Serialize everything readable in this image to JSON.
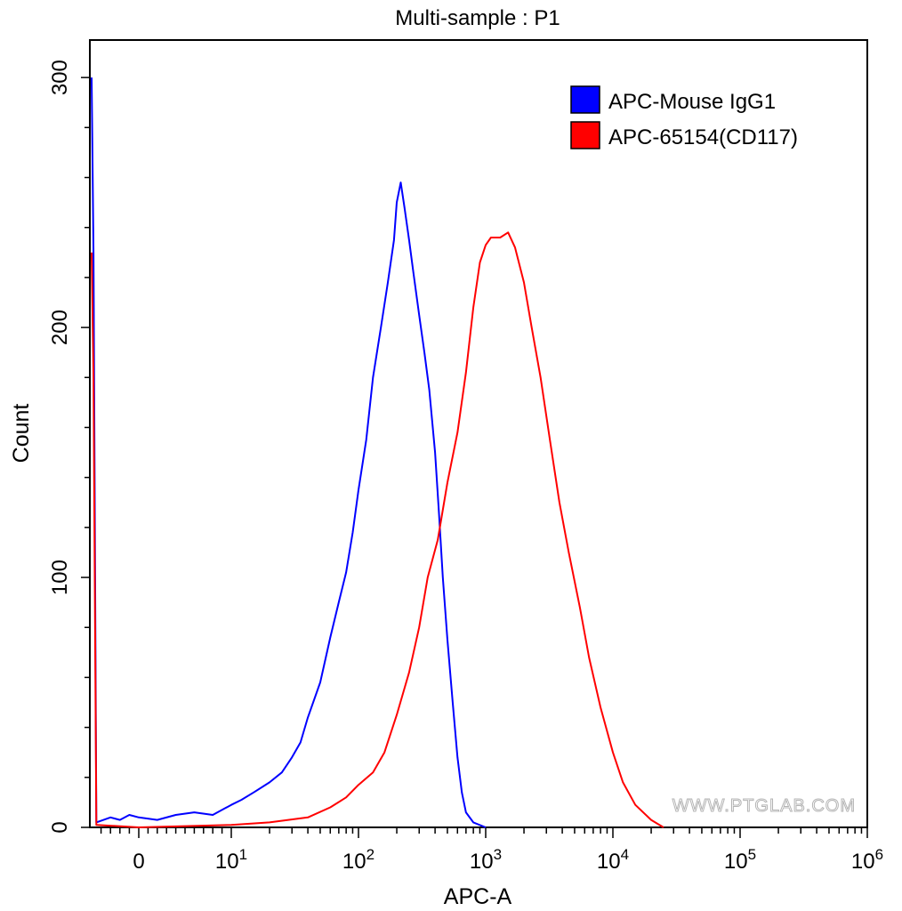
{
  "chart_data": {
    "type": "histogram",
    "title": "Multi-sample : P1",
    "xlabel": "APC-A",
    "ylabel": "Count",
    "x_scale": "biexponential",
    "xlim": [
      -5,
      1000000
    ],
    "ylim": [
      0,
      315
    ],
    "y_ticks": [
      0,
      100,
      200,
      300
    ],
    "y_tick_labels": [
      "0",
      "100",
      "200",
      "300"
    ],
    "x_tick_labels": [
      {
        "value": 0,
        "base": "0",
        "exp": ""
      },
      {
        "value": 10,
        "base": "10",
        "exp": "1"
      },
      {
        "value": 100,
        "base": "10",
        "exp": "2"
      },
      {
        "value": 1000,
        "base": "10",
        "exp": "3"
      },
      {
        "value": 10000,
        "base": "10",
        "exp": "4"
      },
      {
        "value": 100000,
        "base": "10",
        "exp": "5"
      },
      {
        "value": 1000000,
        "base": "10",
        "exp": "6"
      }
    ],
    "legend_position": "top-right",
    "watermark": "WWW.PTGLAB.COM",
    "series": [
      {
        "name": "APC-Mouse IgG1",
        "color": "#0000ff",
        "points": [
          [
            -5,
            300
          ],
          [
            -4.8,
            230
          ],
          [
            -4.5,
            2
          ],
          [
            -3,
            4
          ],
          [
            -2,
            3
          ],
          [
            -1,
            5
          ],
          [
            0,
            4
          ],
          [
            2,
            3
          ],
          [
            4,
            5
          ],
          [
            6,
            6
          ],
          [
            8,
            5
          ],
          [
            10,
            9
          ],
          [
            12,
            11
          ],
          [
            15,
            14
          ],
          [
            20,
            18
          ],
          [
            25,
            22
          ],
          [
            30,
            28
          ],
          [
            35,
            34
          ],
          [
            40,
            44
          ],
          [
            50,
            58
          ],
          [
            60,
            76
          ],
          [
            70,
            90
          ],
          [
            80,
            102
          ],
          [
            90,
            118
          ],
          [
            100,
            135
          ],
          [
            115,
            155
          ],
          [
            130,
            180
          ],
          [
            150,
            200
          ],
          [
            170,
            218
          ],
          [
            190,
            235
          ],
          [
            200,
            250
          ],
          [
            215,
            258
          ],
          [
            230,
            248
          ],
          [
            250,
            235
          ],
          [
            270,
            222
          ],
          [
            300,
            205
          ],
          [
            330,
            190
          ],
          [
            360,
            175
          ],
          [
            400,
            150
          ],
          [
            430,
            125
          ],
          [
            460,
            100
          ],
          [
            500,
            75
          ],
          [
            550,
            50
          ],
          [
            600,
            28
          ],
          [
            650,
            14
          ],
          [
            700,
            6
          ],
          [
            800,
            2
          ],
          [
            1000,
            0
          ]
        ]
      },
      {
        "name": "APC-65154(CD117)",
        "color": "#ff0000",
        "points": [
          [
            -5,
            230
          ],
          [
            -4.8,
            180
          ],
          [
            -4.5,
            1
          ],
          [
            0,
            0
          ],
          [
            10,
            1
          ],
          [
            20,
            2
          ],
          [
            40,
            4
          ],
          [
            60,
            8
          ],
          [
            80,
            12
          ],
          [
            100,
            17
          ],
          [
            130,
            22
          ],
          [
            160,
            30
          ],
          [
            200,
            45
          ],
          [
            250,
            62
          ],
          [
            300,
            80
          ],
          [
            350,
            100
          ],
          [
            420,
            115
          ],
          [
            500,
            138
          ],
          [
            600,
            158
          ],
          [
            700,
            182
          ],
          [
            800,
            208
          ],
          [
            900,
            226
          ],
          [
            1000,
            233
          ],
          [
            1100,
            236
          ],
          [
            1300,
            236
          ],
          [
            1500,
            238
          ],
          [
            1700,
            232
          ],
          [
            2000,
            218
          ],
          [
            2300,
            200
          ],
          [
            2700,
            180
          ],
          [
            3200,
            155
          ],
          [
            3800,
            130
          ],
          [
            4500,
            110
          ],
          [
            5500,
            88
          ],
          [
            6500,
            68
          ],
          [
            8000,
            48
          ],
          [
            10000,
            30
          ],
          [
            12000,
            18
          ],
          [
            15000,
            9
          ],
          [
            20000,
            3
          ],
          [
            25000,
            0
          ]
        ]
      }
    ]
  }
}
